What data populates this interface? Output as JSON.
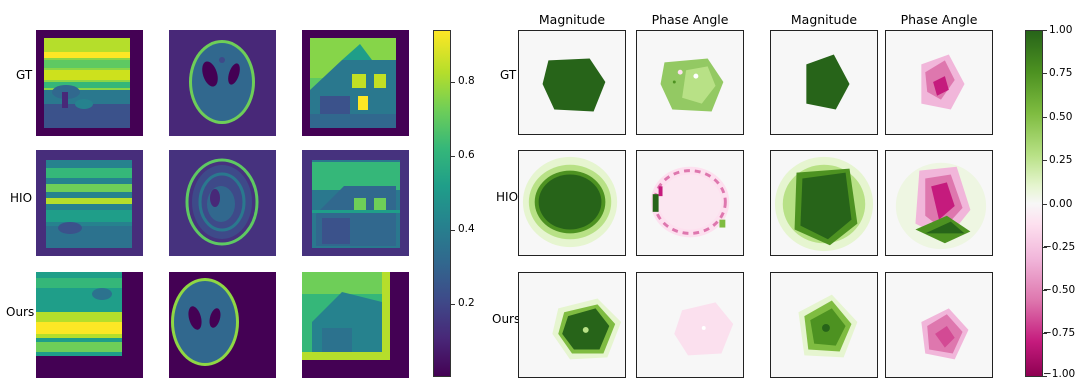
{
  "left": {
    "row_labels": [
      "GT",
      "HIO",
      "Ours"
    ],
    "colorbar": {
      "colormap": "viridis",
      "min": 0,
      "max": 0.94,
      "ticks": [
        "0.2",
        "0.4",
        "0.6",
        "0.8"
      ]
    }
  },
  "right": {
    "column_titles": [
      "Magnitude",
      "Phase Angle",
      "Magnitude",
      "Phase Angle"
    ],
    "row_labels": [
      "GT",
      "HIO",
      "Ours"
    ],
    "colorbar": {
      "colormap": "PiYG",
      "min": -1.0,
      "max": 1.0,
      "ticks": [
        "1.00",
        "0.75",
        "0.50",
        "0.25",
        "0.00",
        "−0.25",
        "−0.50",
        "−0.75",
        "−1.00"
      ]
    }
  },
  "colors": {
    "viridis_dark": "#440154",
    "viridis_blue": "#31688e",
    "viridis_green": "#35b779",
    "viridis_yellow": "#fde725",
    "piyg_green": "#276419",
    "piyg_pink": "#c51b7d",
    "piyg_center": "#f7f7f7"
  }
}
